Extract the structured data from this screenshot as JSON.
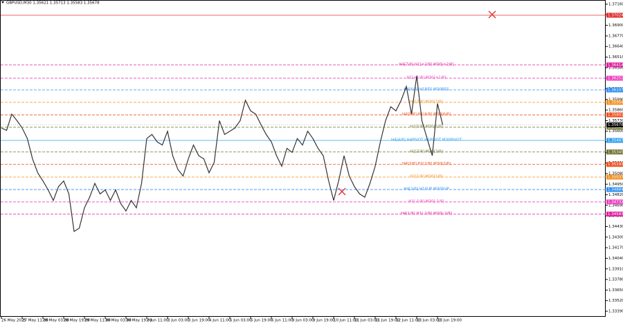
{
  "chart_data": {
    "type": "line",
    "title": "GBPUSD,M30  1.35621 1.35713 1.35583 1.35678",
    "categories": [
      "26 May 2025",
      null,
      null,
      null,
      "27 May 11:00",
      null,
      null,
      null,
      "28 May 03:00",
      null,
      null,
      null,
      "28 May 19:00",
      null,
      null,
      null,
      "29 May 11:00",
      null,
      null,
      null,
      "30 May 03:00",
      null,
      null,
      null,
      "30 May 19:00",
      null,
      null,
      null,
      "2 Jun 11:00",
      null,
      null,
      null,
      "3 Jun 03:00",
      null,
      null,
      null,
      "3 Jun 19:00",
      null,
      null,
      null,
      "4 Jun 11:00",
      null,
      null,
      null,
      "5 Jun 03:00",
      null,
      null,
      null,
      "5 Jun 19:00",
      null,
      null,
      null,
      "6 Jun 11:00",
      null,
      null,
      null,
      "9 Jun 03:00",
      null,
      null,
      null,
      "9 Jun 19:00",
      null,
      null,
      null,
      "10 Jun 11:00",
      null,
      null,
      null,
      "11 Jun 03:00",
      null,
      null,
      null,
      "11 Jun 19:00",
      null,
      null,
      null,
      "12 Jun 11:00",
      null,
      null,
      null,
      "13 Jun 03:00",
      null,
      null,
      null,
      "13 Jun 19:00",
      null
    ],
    "series": [
      {
        "name": "GBPUSD",
        "color": "#333333",
        "values": [
          1.3564,
          1.3561,
          1.3581,
          1.3573,
          1.3564,
          1.3551,
          1.3526,
          1.3509,
          1.3499,
          1.3488,
          1.3475,
          1.3492,
          1.3499,
          1.3483,
          1.3437,
          1.3441,
          1.3466,
          1.3479,
          1.3496,
          1.3483,
          1.3488,
          1.3475,
          1.3488,
          1.3471,
          1.3462,
          1.3475,
          1.3466,
          1.3496,
          1.3551,
          1.3556,
          1.3547,
          1.3543,
          1.356,
          1.353,
          1.3513,
          1.3505,
          1.3526,
          1.3543,
          1.353,
          1.3526,
          1.3509,
          1.3522,
          1.3573,
          1.3556,
          1.356,
          1.3564,
          1.3573,
          1.3598,
          1.3585,
          1.3581,
          1.3568,
          1.3556,
          1.3547,
          1.353,
          1.3517,
          1.3539,
          1.3534,
          1.3551,
          1.3543,
          1.356,
          1.3551,
          1.3539,
          1.353,
          1.35,
          1.3475,
          1.35,
          1.353,
          1.3505,
          1.3492,
          1.3483,
          1.3479,
          1.3496,
          1.3517,
          1.3547,
          1.3573,
          1.359,
          1.3585,
          1.3598,
          1.3615,
          1.3581,
          1.3628,
          1.3573,
          1.3551,
          1.353,
          1.3594,
          1.3568
        ]
      }
    ],
    "ylim": [
      1.33322,
      1.37211
    ],
    "yticks": [
      {
        "value": 1.3716,
        "label": "1.37160"
      },
      {
        "value": 1.3703,
        "label": "1.37030"
      },
      {
        "value": 1.369,
        "label": "1.36900"
      },
      {
        "value": 1.3677,
        "label": "1.36770"
      },
      {
        "value": 1.3664,
        "label": "1.36640"
      },
      {
        "value": 1.3651,
        "label": "1.36510"
      },
      {
        "value": 1.3638,
        "label": "1.36380"
      },
      {
        "value": 1.3625,
        "label": "1.36250"
      },
      {
        "value": 1.3612,
        "label": "1.36120"
      },
      {
        "value": 1.3599,
        "label": "1.35990"
      },
      {
        "value": 1.3586,
        "label": "1.35860"
      },
      {
        "value": 1.3573,
        "label": "1.35730"
      },
      {
        "value": 1.356,
        "label": "1.35600"
      },
      {
        "value": 1.3547,
        "label": "1.35470"
      },
      {
        "value": 1.3534,
        "label": "1.35340"
      },
      {
        "value": 1.3521,
        "label": "1.35210"
      },
      {
        "value": 1.3508,
        "label": "1.35080"
      },
      {
        "value": 1.3495,
        "label": "1.34950"
      },
      {
        "value": 1.3482,
        "label": "1.34820"
      },
      {
        "value": 1.3469,
        "label": "1.34690"
      },
      {
        "value": 1.3456,
        "label": "1.34560"
      },
      {
        "value": 1.3443,
        "label": "1.34430"
      },
      {
        "value": 1.343,
        "label": "1.34300"
      },
      {
        "value": 1.3417,
        "label": "1.34170"
      },
      {
        "value": 1.3404,
        "label": "1.34040"
      },
      {
        "value": 1.3391,
        "label": "1.33910"
      },
      {
        "value": 1.3378,
        "label": "1.33780"
      },
      {
        "value": 1.3365,
        "label": "1.33650"
      },
      {
        "value": 1.3352,
        "label": "1.33520"
      },
      {
        "value": 1.3339,
        "label": "1.33390"
      }
    ],
    "levels": [
      {
        "value": 1.37024,
        "color": "#e03030",
        "dashed": false
      },
      {
        "value": 1.36414,
        "label": "H4[7/8] H1[+2/8] M30[+2/8]",
        "color": "#e020a0",
        "dashed": true
      },
      {
        "value": 1.36251,
        "label": "H1[+1/8] M30[+1/8]",
        "color": "#ee40c0",
        "dashed": true
      },
      {
        "value": 1.36107,
        "label": "H4[6/8] H1RES M30RES",
        "color": "#3090f0",
        "dashed": true
      },
      {
        "value": 1.35954,
        "label": "H1[7/8] M30[7/8]",
        "color": "#f09020",
        "dashed": true
      },
      {
        "value": 1.35801,
        "label": "H4[5/8] H1[6/8] M30[6/8]",
        "color": "#f05020",
        "dashed": true
      },
      {
        "value": 1.35649,
        "label": "H1[5/8] M30[5/8]",
        "color": "#808040",
        "dashed": true
      },
      {
        "value": 1.35487,
        "label": "H4[4/8] H4PIVOT H1PIVOT M30PIVOT",
        "color": "#30a0f0",
        "dashed": false
      },
      {
        "value": 1.35345,
        "label": "H1[3/8] M30[3/8]",
        "color": "#707030",
        "dashed": true
      },
      {
        "value": 1.35193,
        "label": "H4[3/8] H1[2/8] M30[2/8]",
        "color": "#f05020",
        "dashed": true
      },
      {
        "value": 1.35037,
        "label": "H1[1/8] M30[1/8]",
        "color": "#f09020",
        "dashed": true
      },
      {
        "value": 1.34884,
        "label": "H4[2/8] H1SUP M30SUP",
        "color": "#3090f0",
        "dashed": true
      },
      {
        "value": 1.34732,
        "label": "H1[-1/8] M30[-1/8]",
        "color": "#ee40c0",
        "dashed": true
      },
      {
        "value": 1.34583,
        "label": "H4[1/8] H1[-2/8] M30[-2/8]",
        "color": "#e020a0",
        "dashed": true
      }
    ],
    "last_price": 1.35678
  }
}
